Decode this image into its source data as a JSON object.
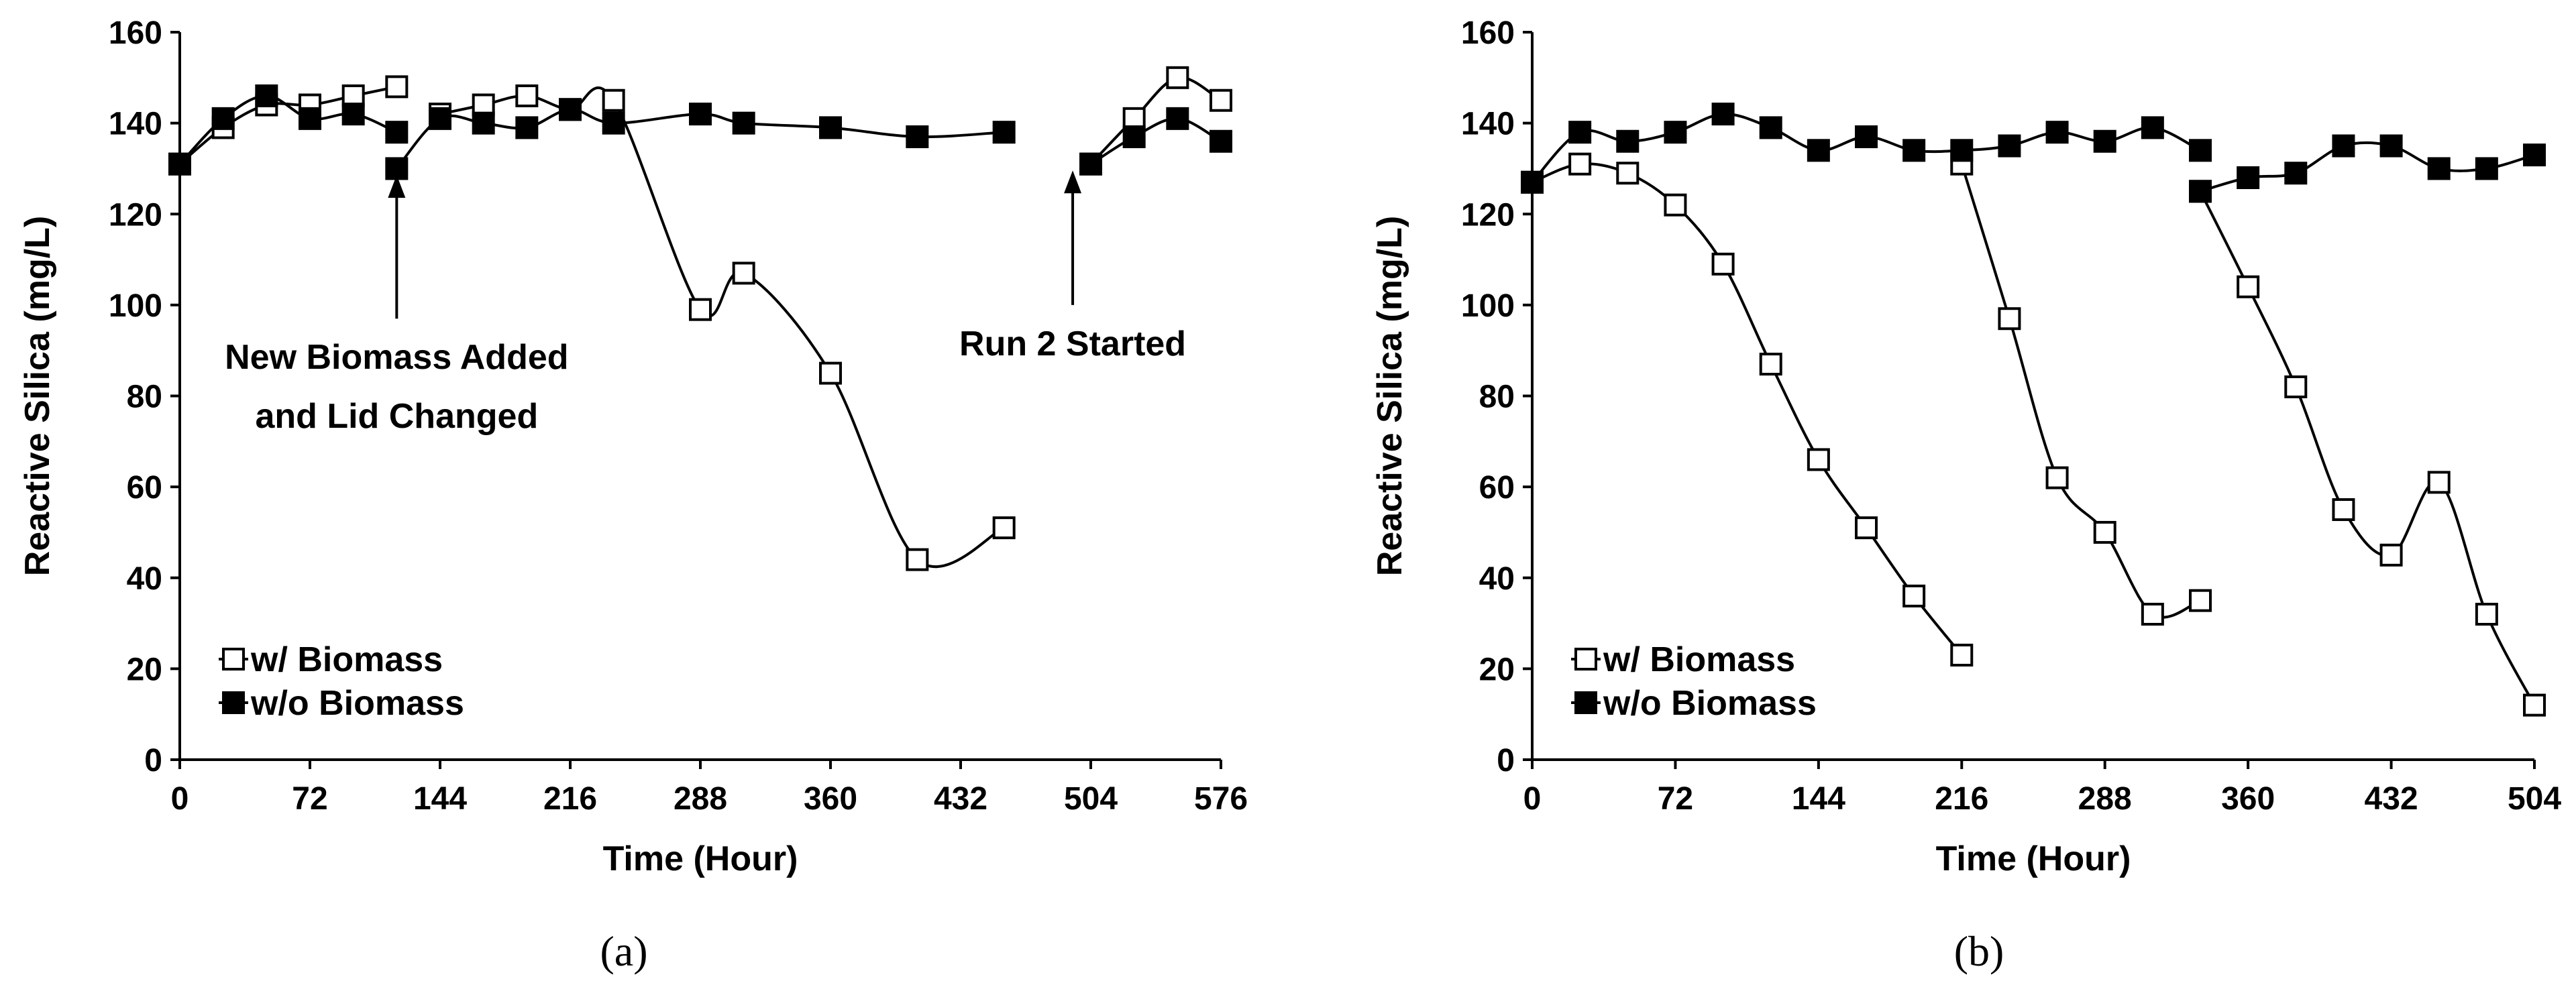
{
  "figure": {
    "panels": [
      {
        "panel_label": "(a)",
        "chart_data": {
          "type": "line",
          "xlabel": "Time (Hour)",
          "ylabel": "Reactive Silica (mg/L)",
          "xlim": [
            0,
            576
          ],
          "ylim": [
            0,
            160
          ],
          "xticks": [
            0,
            72,
            144,
            216,
            288,
            360,
            432,
            504,
            576
          ],
          "yticks": [
            0,
            20,
            40,
            60,
            80,
            100,
            120,
            140,
            160
          ],
          "legend": {
            "placement": "bottom-left"
          },
          "series": [
            {
              "name": "w/ Biomass",
              "marker": "open-square",
              "segments": [
                [
                  [
                    0,
                    131
                  ],
                  [
                    24,
                    139
                  ],
                  [
                    48,
                    144
                  ],
                  [
                    72,
                    144
                  ],
                  [
                    96,
                    146
                  ],
                  [
                    120,
                    148
                  ]
                ],
                [
                  [
                    144,
                    142
                  ],
                  [
                    168,
                    144
                  ],
                  [
                    192,
                    146
                  ],
                  [
                    216,
                    143
                  ],
                  [
                    240,
                    145
                  ],
                  [
                    288,
                    99
                  ],
                  [
                    312,
                    107
                  ],
                  [
                    360,
                    85
                  ],
                  [
                    408,
                    44
                  ],
                  [
                    456,
                    51
                  ]
                ],
                [
                  [
                    504,
                    131
                  ],
                  [
                    528,
                    141
                  ],
                  [
                    552,
                    150
                  ],
                  [
                    576,
                    145
                  ]
                ]
              ]
            },
            {
              "name": "w/o Biomass",
              "marker": "filled-square",
              "segments": [
                [
                  [
                    0,
                    131
                  ],
                  [
                    24,
                    141
                  ],
                  [
                    48,
                    146
                  ],
                  [
                    72,
                    141
                  ],
                  [
                    96,
                    142
                  ],
                  [
                    120,
                    138
                  ]
                ],
                [
                  [
                    120,
                    130
                  ],
                  [
                    144,
                    141
                  ],
                  [
                    168,
                    140
                  ],
                  [
                    192,
                    139
                  ],
                  [
                    216,
                    143
                  ],
                  [
                    240,
                    140
                  ],
                  [
                    288,
                    142
                  ],
                  [
                    312,
                    140
                  ],
                  [
                    360,
                    139
                  ],
                  [
                    408,
                    137
                  ],
                  [
                    456,
                    138
                  ]
                ],
                [
                  [
                    504,
                    131
                  ],
                  [
                    528,
                    137
                  ],
                  [
                    552,
                    141
                  ],
                  [
                    576,
                    136
                  ]
                ]
              ]
            }
          ],
          "annotations": [
            {
              "lines": [
                "New Biomass Added",
                "and Lid Changed"
              ],
              "arrow_x": 120,
              "arrow_from_y": 97,
              "arrow_to_y": 128
            },
            {
              "lines": [
                "Run 2 Started"
              ],
              "arrow_x": 494,
              "arrow_from_y": 100,
              "arrow_to_y": 129
            }
          ]
        }
      },
      {
        "panel_label": "(b)",
        "chart_data": {
          "type": "line",
          "xlabel": "Time (Hour)",
          "ylabel": "Reactive Silica (mg/L)",
          "xlim": [
            0,
            504
          ],
          "ylim": [
            0,
            160
          ],
          "xticks": [
            0,
            72,
            144,
            216,
            288,
            360,
            432,
            504
          ],
          "yticks": [
            0,
            20,
            40,
            60,
            80,
            100,
            120,
            140,
            160
          ],
          "legend": {
            "placement": "bottom-left"
          },
          "series": [
            {
              "name": "w/ Biomass",
              "marker": "open-square",
              "segments": [
                [
                  [
                    0,
                    127
                  ],
                  [
                    24,
                    131
                  ],
                  [
                    48,
                    129
                  ],
                  [
                    72,
                    122
                  ],
                  [
                    96,
                    109
                  ],
                  [
                    120,
                    87
                  ],
                  [
                    144,
                    66
                  ],
                  [
                    168,
                    51
                  ],
                  [
                    192,
                    36
                  ],
                  [
                    216,
                    23
                  ]
                ],
                [
                  [
                    216,
                    131
                  ],
                  [
                    240,
                    97
                  ],
                  [
                    264,
                    62
                  ],
                  [
                    288,
                    50
                  ],
                  [
                    312,
                    32
                  ],
                  [
                    336,
                    35
                  ]
                ],
                [
                  [
                    336,
                    125
                  ],
                  [
                    360,
                    104
                  ],
                  [
                    384,
                    82
                  ],
                  [
                    408,
                    55
                  ],
                  [
                    432,
                    45
                  ],
                  [
                    456,
                    61
                  ],
                  [
                    480,
                    32
                  ],
                  [
                    504,
                    12
                  ]
                ]
              ]
            },
            {
              "name": "w/o Biomass",
              "marker": "filled-square",
              "segments": [
                [
                  [
                    0,
                    127
                  ],
                  [
                    24,
                    138
                  ],
                  [
                    48,
                    136
                  ],
                  [
                    72,
                    138
                  ],
                  [
                    96,
                    142
                  ],
                  [
                    120,
                    139
                  ],
                  [
                    144,
                    134
                  ],
                  [
                    168,
                    137
                  ],
                  [
                    192,
                    134
                  ],
                  [
                    216,
                    134
                  ],
                  [
                    240,
                    135
                  ],
                  [
                    264,
                    138
                  ],
                  [
                    288,
                    136
                  ],
                  [
                    312,
                    139
                  ],
                  [
                    336,
                    134
                  ]
                ],
                [
                  [
                    336,
                    125
                  ],
                  [
                    360,
                    128
                  ],
                  [
                    384,
                    129
                  ],
                  [
                    408,
                    135
                  ],
                  [
                    432,
                    135
                  ],
                  [
                    456,
                    130
                  ],
                  [
                    480,
                    130
                  ],
                  [
                    504,
                    133
                  ]
                ]
              ]
            }
          ],
          "annotations": []
        }
      }
    ]
  }
}
